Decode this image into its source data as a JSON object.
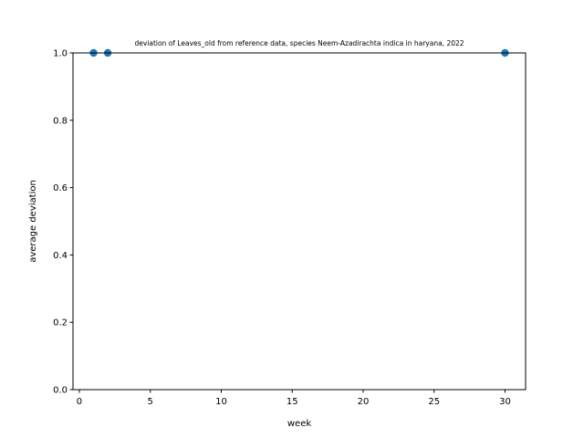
{
  "chart_data": {
    "type": "scatter",
    "title": "deviation of Leaves_old from reference data, species Neem-Azadirachta indica in haryana, 2022",
    "xlabel": "week",
    "ylabel": "average deviation",
    "xlim": [
      -0.45,
      31.45
    ],
    "ylim": [
      0.0,
      1.0
    ],
    "xticks": [
      0,
      5,
      10,
      15,
      20,
      25,
      30
    ],
    "yticks": [
      0.0,
      0.2,
      0.4,
      0.6,
      0.8,
      1.0
    ],
    "x": [
      1,
      2,
      30
    ],
    "y": [
      1.0,
      1.0,
      1.0
    ],
    "grid": false,
    "marker_color": "#1f77b4"
  }
}
